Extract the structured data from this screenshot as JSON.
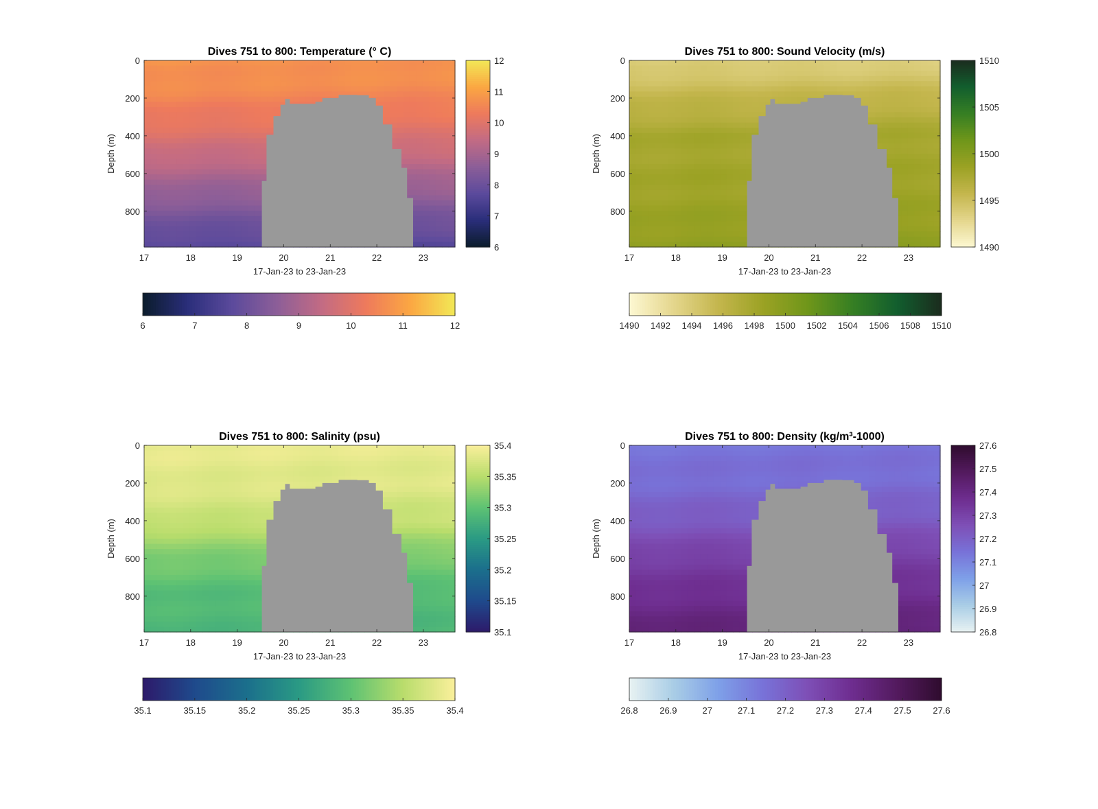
{
  "chart_data": [
    {
      "type": "heatmap",
      "id": "temperature",
      "title": "Dives 751 to 800: Temperature (° C)",
      "xlabel": "17-Jan-23 to 23-Jan-23",
      "ylabel": "Depth (m)",
      "x_ticks": [
        "17",
        "18",
        "19",
        "20",
        "21",
        "22",
        "23"
      ],
      "y_ticks": [
        "0",
        "200",
        "400",
        "600",
        "800"
      ],
      "xlim": [
        17,
        23.68
      ],
      "ylim": [
        0,
        990
      ],
      "clim": [
        6,
        12
      ],
      "colorbar_ticks_right": [
        "12",
        "11",
        "10",
        "9",
        "8",
        "7",
        "6"
      ],
      "colorbar_ticks_bottom": [
        "6",
        "7",
        "8",
        "9",
        "10",
        "11",
        "12"
      ],
      "colormap": [
        "#0b1c2c",
        "#2a2e7a",
        "#5b4a9c",
        "#8c5e98",
        "#c26b84",
        "#ee7a5c",
        "#fba742",
        "#f2e856"
      ],
      "profile_depth": [
        0,
        200,
        400,
        600,
        800,
        990
      ],
      "profile_value": [
        10.8,
        10.5,
        9.9,
        9.1,
        8.3,
        7.6
      ],
      "no_data_fill": "#999999"
    },
    {
      "type": "heatmap",
      "id": "sound-velocity",
      "title": "Dives 751 to 800: Sound Velocity (m/s)",
      "xlabel": "17-Jan-23 to 23-Jan-23",
      "ylabel": "Depth (m)",
      "x_ticks": [
        "17",
        "18",
        "19",
        "20",
        "21",
        "22",
        "23"
      ],
      "y_ticks": [
        "0",
        "200",
        "400",
        "600",
        "800"
      ],
      "xlim": [
        17,
        23.68
      ],
      "ylim": [
        0,
        990
      ],
      "clim": [
        1490,
        1510
      ],
      "colorbar_ticks_right": [
        "1510",
        "1505",
        "1500",
        "1495",
        "1490"
      ],
      "colorbar_ticks_bottom": [
        "1490",
        "1492",
        "1494",
        "1496",
        "1498",
        "1500",
        "1502",
        "1504",
        "1506",
        "1508",
        "1510"
      ],
      "colormap": [
        "#fdf8d2",
        "#e4d68c",
        "#c4b64d",
        "#9ba224",
        "#6f961a",
        "#367f23",
        "#125e2e",
        "#1b2c1e"
      ],
      "profile_depth": [
        0,
        200,
        400,
        600,
        800,
        990
      ],
      "profile_value": [
        1493.5,
        1495.8,
        1497.8,
        1498.1,
        1498.6,
        1499.3
      ],
      "no_data_fill": "#999999"
    },
    {
      "type": "heatmap",
      "id": "salinity",
      "title": "Dives 751 to 800: Salinity (psu)",
      "xlabel": "17-Jan-23 to 23-Jan-23",
      "ylabel": "Depth (m)",
      "x_ticks": [
        "17",
        "18",
        "19",
        "20",
        "21",
        "22",
        "23"
      ],
      "y_ticks": [
        "0",
        "200",
        "400",
        "600",
        "800"
      ],
      "xlim": [
        17,
        23.68
      ],
      "ylim": [
        0,
        990
      ],
      "clim": [
        35.1,
        35.4
      ],
      "colorbar_ticks_right": [
        "35.4",
        "35.35",
        "35.3",
        "35.25",
        "35.2",
        "35.15",
        "35.1"
      ],
      "colorbar_ticks_bottom": [
        "35.1",
        "35.15",
        "35.2",
        "35.25",
        "35.3",
        "35.35",
        "35.4"
      ],
      "colormap": [
        "#2d1a6a",
        "#1f4a8c",
        "#1b6f8c",
        "#2a9a84",
        "#5ec273",
        "#b9dd6c",
        "#faef9b"
      ],
      "profile_depth": [
        0,
        200,
        400,
        600,
        800,
        990
      ],
      "profile_value": [
        35.385,
        35.38,
        35.36,
        35.315,
        35.29,
        35.285
      ],
      "no_data_fill": "#999999"
    },
    {
      "type": "heatmap",
      "id": "density",
      "title": "Dives 751 to 800: Density (kg/m³-1000)",
      "xlabel": "17-Jan-23 to 23-Jan-23",
      "ylabel": "Depth (m)",
      "x_ticks": [
        "17",
        "18",
        "19",
        "20",
        "21",
        "22",
        "23"
      ],
      "y_ticks": [
        "0",
        "200",
        "400",
        "600",
        "800"
      ],
      "xlim": [
        17,
        23.68
      ],
      "ylim": [
        0,
        990
      ],
      "clim": [
        26.8,
        27.6
      ],
      "colorbar_ticks_right": [
        "27.6",
        "27.5",
        "27.4",
        "27.3",
        "27.2",
        "27.1",
        "27",
        "26.9",
        "26.8"
      ],
      "colorbar_ticks_bottom": [
        "26.8",
        "26.9",
        "27",
        "27.1",
        "27.2",
        "27.3",
        "27.4",
        "27.5",
        "27.6"
      ],
      "colormap": [
        "#e8f2f2",
        "#a9cde6",
        "#7ea0e8",
        "#7872d8",
        "#7e4fb6",
        "#6e2d8f",
        "#531a5e",
        "#2f0c2e"
      ],
      "profile_depth": [
        0,
        200,
        400,
        600,
        800,
        990
      ],
      "profile_value": [
        27.14,
        27.16,
        27.22,
        27.31,
        27.37,
        27.43
      ],
      "no_data_fill": "#999999"
    }
  ]
}
